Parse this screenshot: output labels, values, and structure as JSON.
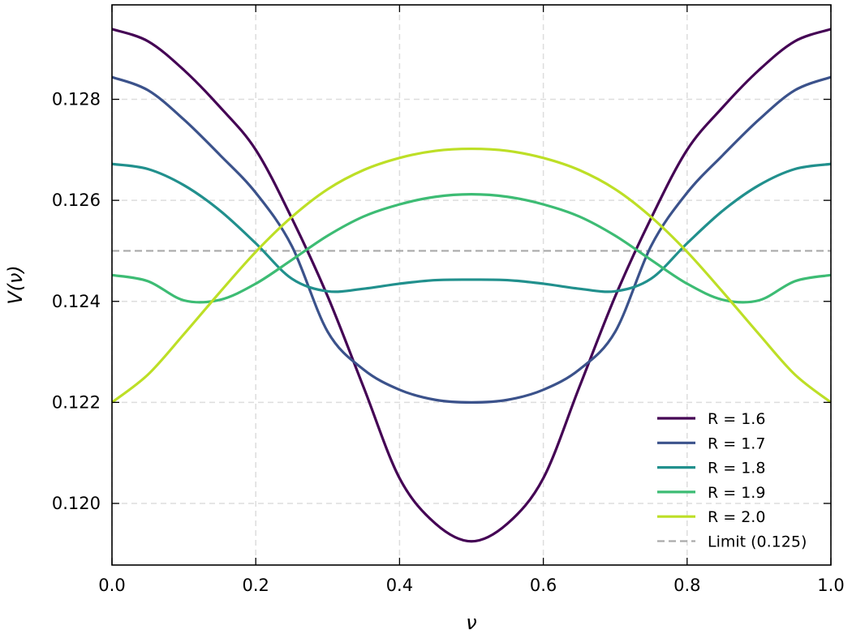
{
  "chart_data": {
    "type": "line",
    "title": "",
    "xlabel": "ν",
    "ylabel": "V(ν)",
    "xlim": [
      0.0,
      1.0
    ],
    "ylim": [
      0.11878,
      0.12987
    ],
    "x_ticks": [
      0.0,
      0.2,
      0.4,
      0.6,
      0.8,
      1.0
    ],
    "x_tick_labels": [
      "0.0",
      "0.2",
      "0.4",
      "0.6",
      "0.8",
      "1.0"
    ],
    "y_ticks": [
      0.12,
      0.122,
      0.124,
      0.126,
      0.128
    ],
    "y_tick_labels": [
      "0.120",
      "0.122",
      "0.124",
      "0.126",
      "0.128"
    ],
    "grid": true,
    "legend_position": "bottom-right",
    "x": [
      0.0,
      0.05,
      0.1,
      0.15,
      0.2,
      0.25,
      0.3,
      0.35,
      0.4,
      0.45,
      0.5,
      0.55,
      0.6,
      0.65,
      0.7,
      0.75,
      0.8,
      0.85,
      0.9,
      0.95,
      1.0
    ],
    "series": [
      {
        "name": "R = 1.6",
        "color": "#440154",
        "values": [
          0.12939,
          0.12915,
          0.12858,
          0.12785,
          0.127,
          0.12565,
          0.1241,
          0.1223,
          0.1205,
          0.1196,
          0.11925,
          0.1196,
          0.1205,
          0.1223,
          0.1241,
          0.12565,
          0.127,
          0.12785,
          0.12858,
          0.12915,
          0.12939
        ]
      },
      {
        "name": "R = 1.7",
        "color": "#3b528b",
        "values": [
          0.12844,
          0.12818,
          0.1276,
          0.1269,
          0.12615,
          0.1251,
          0.1234,
          0.12265,
          0.12225,
          0.12205,
          0.122,
          0.12205,
          0.12225,
          0.12265,
          0.1234,
          0.1251,
          0.12615,
          0.1269,
          0.1276,
          0.12818,
          0.12844
        ]
      },
      {
        "name": "R = 1.8",
        "color": "#21908d",
        "values": [
          0.12672,
          0.12662,
          0.1263,
          0.1258,
          0.12515,
          0.12445,
          0.1242,
          0.12425,
          0.12435,
          0.12442,
          0.12443,
          0.12442,
          0.12435,
          0.12425,
          0.1242,
          0.12445,
          0.12515,
          0.1258,
          0.1263,
          0.12662,
          0.12672
        ]
      },
      {
        "name": "R = 1.9",
        "color": "#3dbc74",
        "values": [
          0.12452,
          0.1244,
          0.12402,
          0.12403,
          0.12435,
          0.12482,
          0.1253,
          0.12568,
          0.12592,
          0.12607,
          0.12612,
          0.12607,
          0.12592,
          0.12568,
          0.1253,
          0.12482,
          0.12435,
          0.12403,
          0.12402,
          0.1244,
          0.12452
        ]
      },
      {
        "name": "R = 2.0",
        "color": "#bddf26",
        "values": [
          0.122,
          0.12255,
          0.12335,
          0.12418,
          0.12498,
          0.12567,
          0.12622,
          0.1266,
          0.12684,
          0.12698,
          0.12702,
          0.12698,
          0.12684,
          0.1266,
          0.12622,
          0.12567,
          0.12498,
          0.12418,
          0.12335,
          0.12255,
          0.122
        ]
      }
    ],
    "reference_line": {
      "name": "Limit (0.125)",
      "y": 0.125,
      "color": "#aaaaaa",
      "style": "dashed"
    },
    "legend_entries": [
      {
        "name": "R = 1.6",
        "color": "#440154",
        "style": "solid"
      },
      {
        "name": "R = 1.7",
        "color": "#3b528b",
        "style": "solid"
      },
      {
        "name": "R = 1.8",
        "color": "#21908d",
        "style": "solid"
      },
      {
        "name": "R = 1.9",
        "color": "#3dbc74",
        "style": "solid"
      },
      {
        "name": "R = 2.0",
        "color": "#bddf26",
        "style": "solid"
      },
      {
        "name": "Limit (0.125)",
        "color": "#aaaaaa",
        "style": "dashed"
      }
    ]
  }
}
